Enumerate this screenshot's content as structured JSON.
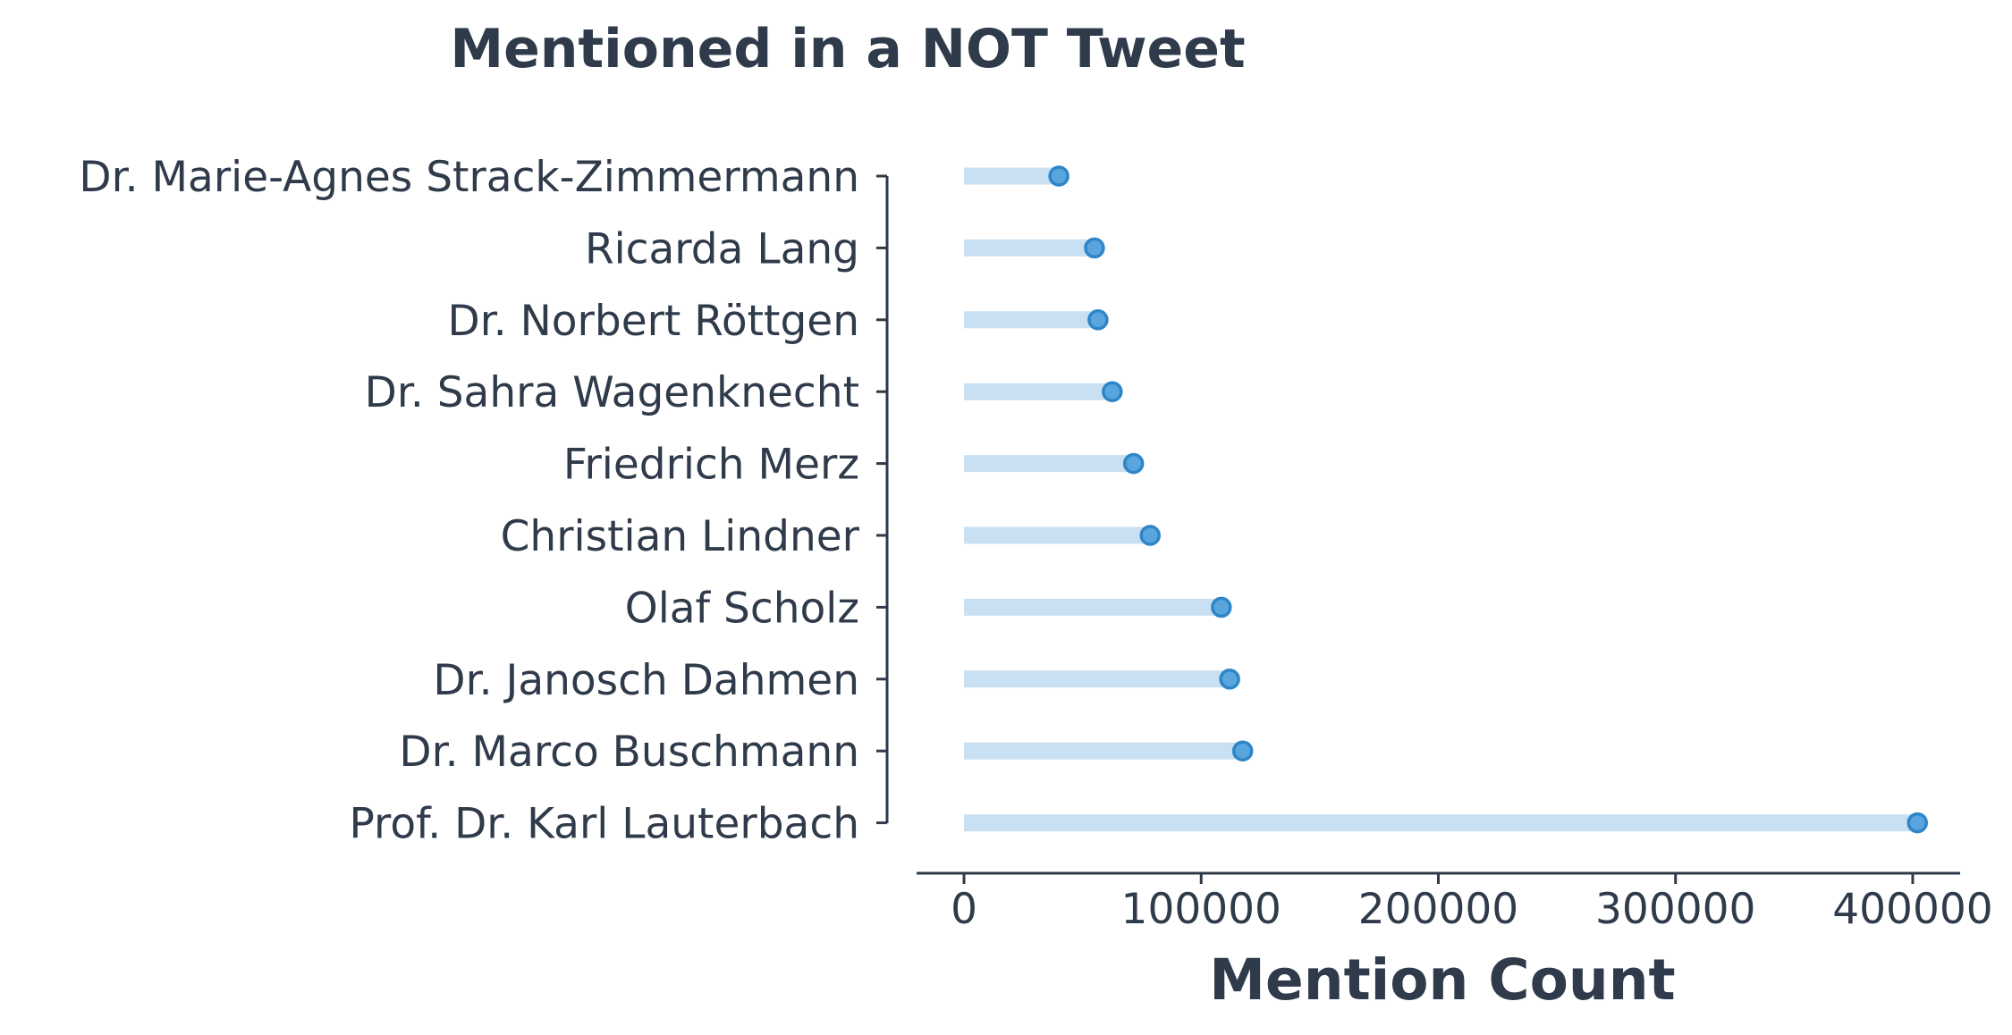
{
  "chart_data": {
    "type": "lollipop",
    "title": "Mentioned in a NOT Tweet",
    "xlabel": "Mention Count",
    "ylabel": "",
    "orientation": "horizontal",
    "categories": [
      "Dr. Marie-Agnes Strack-Zimmermann",
      "Ricarda Lang",
      "Dr. Norbert Röttgen",
      "Dr. Sahra Wagenknecht",
      "Friedrich Merz",
      "Christian Lindner",
      "Olaf Scholz",
      "Dr. Janosch Dahmen",
      "Dr. Marco Buschmann",
      "Prof. Dr. Karl Lauterbach"
    ],
    "values": [
      40000,
      55000,
      56500,
      62500,
      71500,
      78500,
      108500,
      112000,
      117500,
      402000
    ],
    "xlim": [
      -20000,
      420000
    ],
    "xticks": [
      0,
      100000,
      200000,
      300000,
      400000
    ],
    "xtick_labels": [
      "0",
      "100000",
      "200000",
      "300000",
      "400000"
    ],
    "grid": false,
    "colors": {
      "stem": "#c9e0f2",
      "dot": "#5aa5de",
      "dot_edge": "#2e86c9",
      "text": "#2f3b4a"
    }
  }
}
